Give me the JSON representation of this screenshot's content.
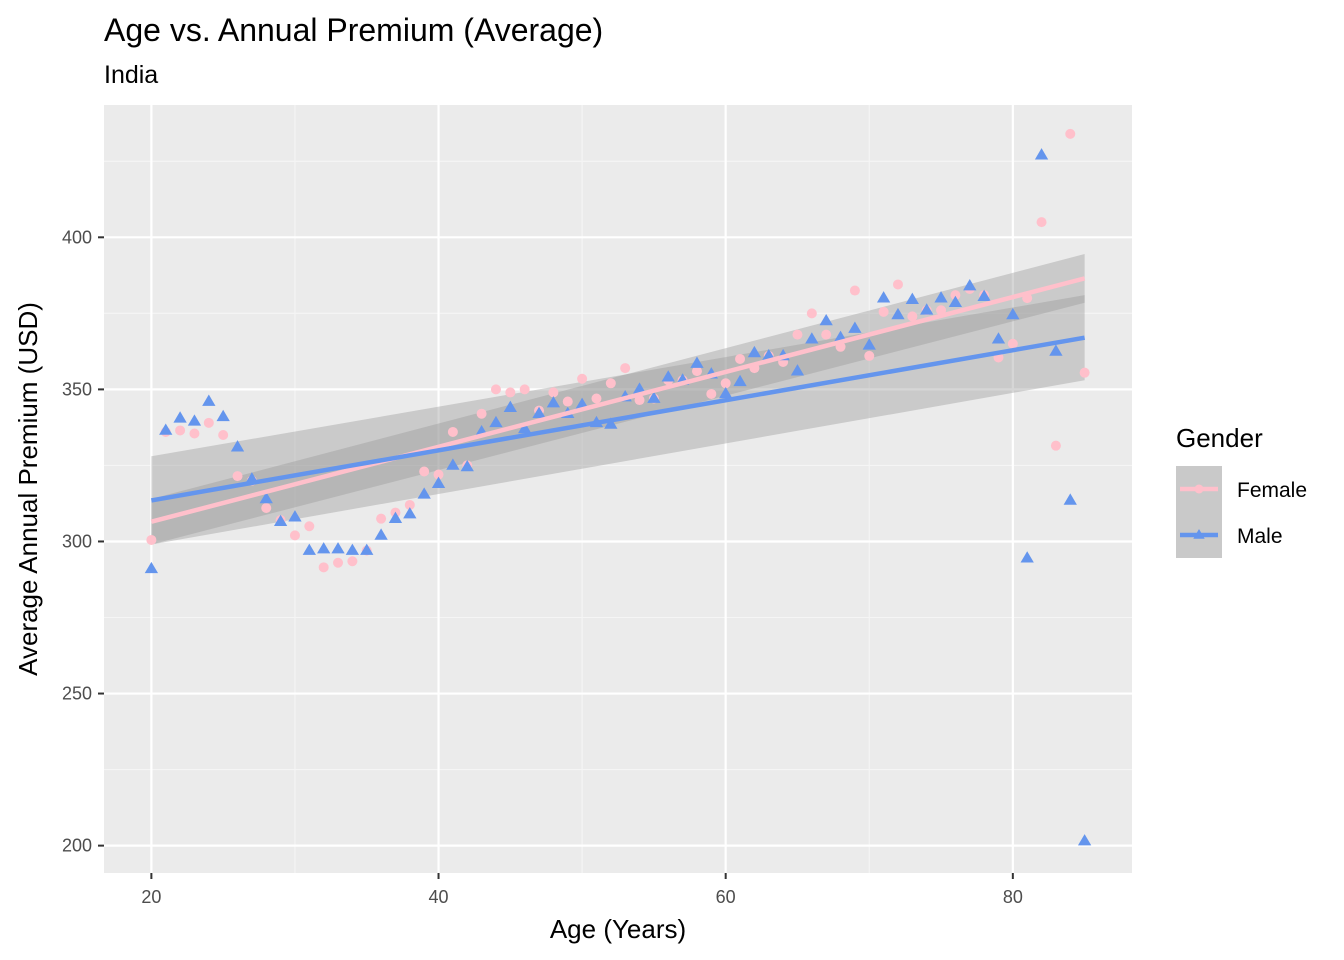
{
  "chart_data": {
    "type": "scatter",
    "title": "Age vs. Annual Premium (Average)",
    "subtitle": "India",
    "xlabel": "Age (Years)",
    "ylabel": "Average Annual Premium (USD)",
    "xlim": [
      16.7,
      88.3
    ],
    "ylim": [
      191,
      443.5
    ],
    "xticks": [
      20,
      40,
      60,
      80
    ],
    "yticks": [
      200,
      250,
      300,
      350,
      400
    ],
    "grid": true,
    "legend": {
      "title": "Gender",
      "position": "right"
    },
    "series": [
      {
        "name": "Female",
        "color": "#FFC0CB",
        "marker": "circle",
        "x": [
          20,
          21,
          22,
          23,
          24,
          25,
          26,
          27,
          28,
          29,
          30,
          31,
          32,
          33,
          34,
          35,
          36,
          37,
          38,
          39,
          40,
          41,
          42,
          43,
          44,
          45,
          46,
          47,
          48,
          49,
          50,
          51,
          52,
          53,
          54,
          55,
          56,
          57,
          58,
          59,
          60,
          61,
          62,
          63,
          64,
          65,
          66,
          67,
          68,
          69,
          70,
          71,
          72,
          73,
          74,
          75,
          76,
          77,
          78,
          79,
          80,
          81,
          82,
          83,
          84,
          85
        ],
        "y": [
          300.5,
          336,
          336.5,
          335.5,
          339,
          335,
          321.5,
          320,
          311,
          307,
          302,
          305,
          291.5,
          293,
          293.5,
          297,
          307.5,
          309.5,
          312,
          323,
          322,
          336,
          325,
          342,
          350,
          349,
          350,
          343,
          349,
          346,
          353.5,
          347,
          352,
          357,
          346.5,
          347,
          353,
          353,
          356,
          348.5,
          352,
          360,
          357,
          361,
          359,
          368,
          375,
          368,
          364,
          382.5,
          361,
          375.5,
          384.5,
          374,
          376,
          376,
          381,
          383,
          381,
          360.5,
          365,
          380,
          405,
          331.5,
          434,
          355.5
        ],
        "fit": {
          "x": [
            20,
            85
          ],
          "y": [
            306.5,
            386.5
          ],
          "ci_low": [
            299,
            378.5
          ],
          "ci_high": [
            314,
            394.5
          ]
        }
      },
      {
        "name": "Male",
        "color": "#6495ED",
        "marker": "triangle",
        "x": [
          20,
          21,
          22,
          23,
          24,
          25,
          26,
          27,
          28,
          29,
          30,
          31,
          32,
          33,
          34,
          35,
          36,
          37,
          38,
          39,
          40,
          41,
          42,
          43,
          44,
          45,
          46,
          47,
          48,
          49,
          50,
          51,
          52,
          53,
          54,
          55,
          56,
          57,
          58,
          59,
          60,
          61,
          62,
          63,
          64,
          65,
          66,
          67,
          68,
          69,
          70,
          71,
          72,
          73,
          74,
          75,
          76,
          77,
          78,
          79,
          80,
          81,
          82,
          83,
          84,
          85
        ],
        "y": [
          291,
          336.5,
          340.5,
          339.5,
          346,
          341,
          331,
          320.5,
          314,
          306.5,
          308,
          297,
          297.5,
          297.5,
          297,
          297,
          302,
          307.5,
          309,
          315.5,
          319,
          325,
          324.5,
          336,
          339,
          344,
          337,
          342,
          345.5,
          342,
          345,
          339,
          338.5,
          347.5,
          350,
          347,
          354,
          353,
          358.5,
          355,
          348.5,
          352.5,
          362,
          361,
          361,
          356,
          366.5,
          372.5,
          367,
          370,
          364.5,
          380,
          374.5,
          379.5,
          376,
          380,
          378.5,
          384,
          380.5,
          366.5,
          374.5,
          294.5,
          427,
          362.5,
          313.5,
          201.5
        ],
        "fit": {
          "x": [
            20,
            85
          ],
          "y": [
            313.5,
            367
          ],
          "ci_low": [
            299,
            353
          ],
          "ci_high": [
            328,
            381
          ]
        }
      }
    ]
  }
}
